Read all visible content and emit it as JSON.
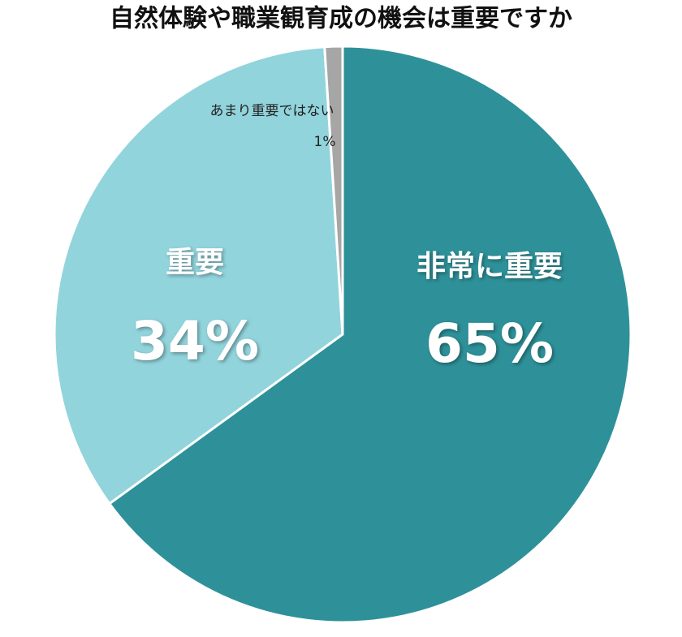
{
  "chart_data": {
    "type": "pie",
    "title": "自然体験や職業観育成の機会は重要ですか",
    "categories": [
      "非常に重要",
      "重要",
      "あまり重要ではない"
    ],
    "values": [
      65,
      34,
      1
    ],
    "value_labels": [
      "65%",
      "34%",
      "1%"
    ],
    "colors": [
      "#2e9199",
      "#92d4dc",
      "#a6a6a6"
    ]
  }
}
